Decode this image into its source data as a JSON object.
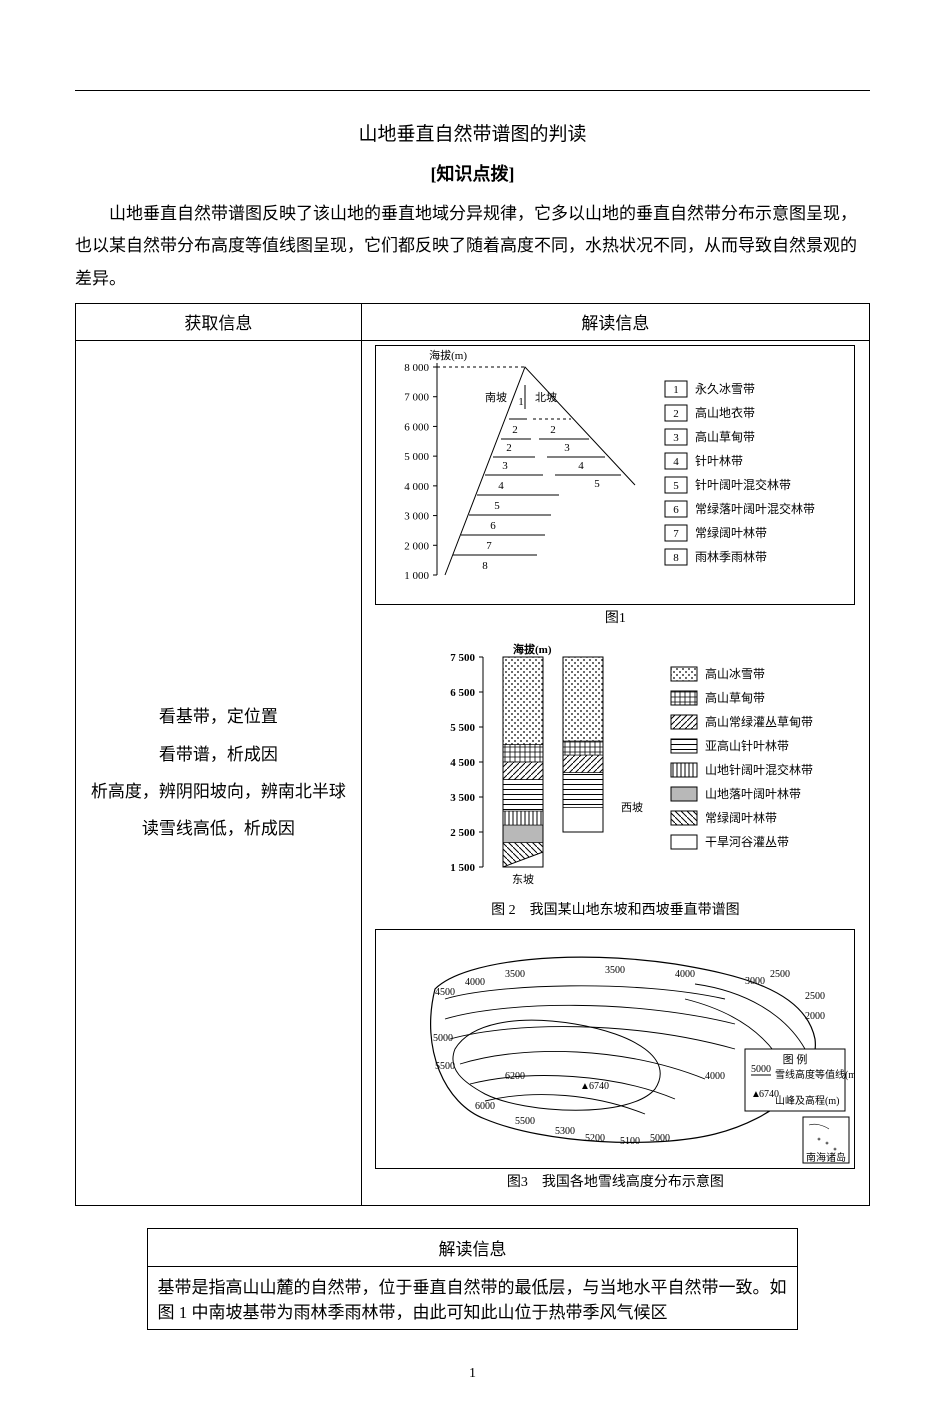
{
  "title": "山地垂直自然带谱图的判读",
  "subtitle": "[知识点拨]",
  "intro": "山地垂直自然带谱图反映了该山地的垂直地域分异规律，它多以山地的垂直自然带分布示意图呈现，也以某自然带分布高度等值线图呈现，它们都反映了随着高度不同，水热状况不同，从而导致自然景观的差异。",
  "table_headers": {
    "left": "获取信息",
    "right": "解读信息"
  },
  "left_lines": [
    "看基带，定位置",
    "看带谱，析成因",
    "析高度，辨阴阳坡向，辨南北半球",
    "读雪线高低，析成因"
  ],
  "fig1": {
    "axis_label": "海拔(m)",
    "y_ticks": [
      1000,
      2000,
      3000,
      4000,
      5000,
      6000,
      7000,
      8000
    ],
    "slope_labels": {
      "south": "南坡",
      "north": "北坡"
    },
    "legend": [
      {
        "n": "1",
        "label": "永久冰雪带"
      },
      {
        "n": "2",
        "label": "高山地衣带"
      },
      {
        "n": "3",
        "label": "高山草甸带"
      },
      {
        "n": "4",
        "label": "针叶林带"
      },
      {
        "n": "5",
        "label": "针叶阔叶混交林带"
      },
      {
        "n": "6",
        "label": "常绿落叶阔叶混交林带"
      },
      {
        "n": "7",
        "label": "常绿阔叶林带"
      },
      {
        "n": "8",
        "label": "雨林季雨林带"
      }
    ],
    "caption": "图1"
  },
  "fig2": {
    "axis_label": "海拔(m)",
    "y_ticks": [
      1500,
      2500,
      3500,
      4500,
      5500,
      6500,
      7500
    ],
    "bar_labels": {
      "east": "东坡",
      "west": "西坡"
    },
    "legend": [
      {
        "label": "高山冰雪带",
        "pattern": "dots"
      },
      {
        "label": "高山草甸带",
        "pattern": "grid"
      },
      {
        "label": "高山常绿灌丛草甸带",
        "pattern": "diag"
      },
      {
        "label": "亚高山针叶林带",
        "pattern": "hatch"
      },
      {
        "label": "山地针阔叶混交林带",
        "pattern": "vlines"
      },
      {
        "label": "山地落叶阔叶林带",
        "pattern": "gray"
      },
      {
        "label": "常绿阔叶林带",
        "pattern": "diag2"
      },
      {
        "label": "干旱河谷灌丛带",
        "pattern": "blank"
      }
    ],
    "east_bands": [
      {
        "from": 1500,
        "to": 2200,
        "pattern": "diag2"
      },
      {
        "from": 2200,
        "to": 2700,
        "pattern": "gray"
      },
      {
        "from": 2700,
        "to": 3100,
        "pattern": "vlines"
      },
      {
        "from": 3100,
        "to": 4000,
        "pattern": "hatch"
      },
      {
        "from": 4000,
        "to": 4500,
        "pattern": "diag"
      },
      {
        "from": 4500,
        "to": 5000,
        "pattern": "grid"
      },
      {
        "from": 5000,
        "to": 7500,
        "pattern": "dots"
      }
    ],
    "west_bands": [
      {
        "from": 2500,
        "to": 3200,
        "pattern": "blank"
      },
      {
        "from": 3200,
        "to": 4200,
        "pattern": "hatch"
      },
      {
        "from": 4200,
        "to": 4700,
        "pattern": "diag"
      },
      {
        "from": 4700,
        "to": 5100,
        "pattern": "grid"
      },
      {
        "from": 5100,
        "to": 7500,
        "pattern": "dots"
      }
    ],
    "caption": "图 2　我国某山地东坡和西坡垂直带谱图"
  },
  "fig3": {
    "caption": "图3　我国各地雪线高度分布示意图",
    "legend_title": "图 例",
    "legend_items": [
      {
        "label": "雪线高度等值线(m)",
        "sample": "5000"
      },
      {
        "label": "山峰及高程(m)",
        "sample": "▲6740"
      }
    ],
    "contour_values": [
      2500,
      3000,
      3500,
      4000,
      4500,
      5000,
      5100,
      5200,
      5300,
      5500,
      6000,
      6200,
      6740
    ],
    "inset_label": "南海诸岛"
  },
  "info2_header": "解读信息",
  "info2_rows": [
    "基带是指高山山麓的自然带，位于垂直自然带的最低层，与当地水平自然带一致。如图 1 中南坡基带为雨林季雨林带，由此可知此山位于热带季风气候区"
  ],
  "page_number": "1",
  "colors": {
    "text": "#000000",
    "border": "#000000",
    "bg": "#ffffff",
    "gray_fill": "#b8b8b8"
  }
}
